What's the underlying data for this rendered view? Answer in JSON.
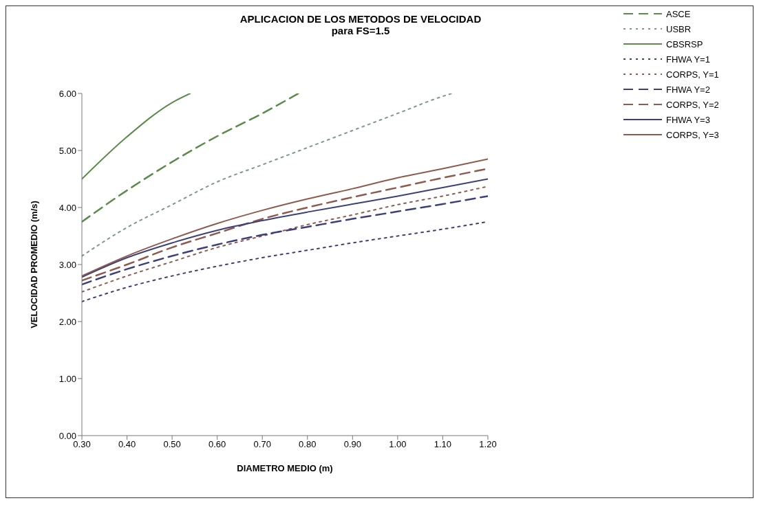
{
  "chart_data": {
    "type": "line",
    "title": "APLICACION DE LOS METODOS DE VELOCIDAD",
    "subtitle": "para FS=1.5",
    "xlabel": "DIAMETRO MEDIO (m)",
    "ylabel": "VELOCIDAD PROMEDIO (m/s)",
    "xlim": [
      0.3,
      1.2
    ],
    "xticks": [
      {
        "value": 0.3,
        "label": "0.30"
      },
      {
        "value": 0.4,
        "label": "0.40"
      },
      {
        "value": 0.5,
        "label": "0.50"
      },
      {
        "value": 0.6,
        "label": "0.60"
      },
      {
        "value": 0.7,
        "label": "0.70"
      },
      {
        "value": 0.8,
        "label": "0.80"
      },
      {
        "value": 0.9,
        "label": "0.90"
      },
      {
        "value": 1.0,
        "label": "1.00"
      },
      {
        "value": 1.1,
        "label": "1.10"
      },
      {
        "value": 1.2,
        "label": "1.20"
      }
    ],
    "ylim": [
      0,
      6
    ],
    "yticks": [
      {
        "value": 0,
        "label": "0.00"
      },
      {
        "value": 1,
        "label": "1.00"
      },
      {
        "value": 2,
        "label": "2.00"
      },
      {
        "value": 3,
        "label": "3.00"
      },
      {
        "value": 4,
        "label": "4.00"
      },
      {
        "value": 5,
        "label": "5.00"
      },
      {
        "value": 6,
        "label": "6.00"
      }
    ],
    "grid": false,
    "legend": "right",
    "marker": "none",
    "series": [
      {
        "name": "ASCE",
        "color": "#5b8a4a",
        "line_style": "dashed",
        "x": [
          0.3,
          0.4,
          0.5,
          0.6,
          0.7,
          0.78
        ],
        "values": [
          3.75,
          4.3,
          4.8,
          5.25,
          5.65,
          6.0
        ]
      },
      {
        "name": "USBR",
        "color": "#7a9a8a",
        "line_style": "dotted",
        "x": [
          0.3,
          0.4,
          0.5,
          0.6,
          0.7,
          0.8,
          0.9,
          1.0,
          1.1,
          1.12
        ],
        "values": [
          3.15,
          3.65,
          4.05,
          4.45,
          4.75,
          5.05,
          5.35,
          5.65,
          5.95,
          6.0
        ]
      },
      {
        "name": "CBSRSP",
        "color": "#5b8a4a",
        "line_style": "solid",
        "x": [
          0.3,
          0.4,
          0.5,
          0.54
        ],
        "values": [
          4.5,
          5.24,
          5.84,
          6.0
        ]
      },
      {
        "name": "FHWA Y=1",
        "color": "#3c3f7a",
        "line_style": "dotted",
        "x": [
          0.3,
          0.4,
          0.5,
          0.6,
          0.7,
          0.8,
          0.9,
          1.0,
          1.1,
          1.2
        ],
        "values": [
          2.35,
          2.6,
          2.8,
          2.97,
          3.12,
          3.25,
          3.38,
          3.5,
          3.62,
          3.75
        ]
      },
      {
        "name": "CORPS, Y=1",
        "color": "#8e5a4e",
        "line_style": "dotted",
        "x": [
          0.3,
          0.4,
          0.5,
          0.6,
          0.7,
          0.8,
          0.9,
          1.0,
          1.1,
          1.2
        ],
        "values": [
          2.52,
          2.8,
          3.05,
          3.3,
          3.5,
          3.7,
          3.87,
          4.05,
          4.2,
          4.37
        ]
      },
      {
        "name": "FHWA Y=2",
        "color": "#3c3f7a",
        "line_style": "dashed",
        "x": [
          0.3,
          0.4,
          0.5,
          0.6,
          0.7,
          0.8,
          0.9,
          1.0,
          1.1,
          1.2
        ],
        "values": [
          2.65,
          2.92,
          3.15,
          3.35,
          3.52,
          3.66,
          3.8,
          3.93,
          4.06,
          4.2
        ]
      },
      {
        "name": "CORPS, Y=2",
        "color": "#8e5a4e",
        "line_style": "dashed",
        "x": [
          0.3,
          0.4,
          0.5,
          0.6,
          0.7,
          0.8,
          0.9,
          1.0,
          1.1,
          1.2
        ],
        "values": [
          2.72,
          3.0,
          3.3,
          3.55,
          3.8,
          4.0,
          4.18,
          4.35,
          4.52,
          4.68
        ]
      },
      {
        "name": "FHWA Y=3",
        "color": "#3c3f7a",
        "line_style": "solid",
        "x": [
          0.3,
          0.4,
          0.5,
          0.6,
          0.7,
          0.8,
          0.9,
          1.0,
          1.1,
          1.2
        ],
        "values": [
          2.78,
          3.12,
          3.38,
          3.6,
          3.77,
          3.92,
          4.06,
          4.2,
          4.35,
          4.5
        ]
      },
      {
        "name": "CORPS, Y=3",
        "color": "#8e5a4e",
        "line_style": "solid",
        "x": [
          0.3,
          0.4,
          0.5,
          0.6,
          0.7,
          0.8,
          0.9,
          1.0,
          1.1,
          1.2
        ],
        "values": [
          2.8,
          3.15,
          3.45,
          3.72,
          3.95,
          4.15,
          4.33,
          4.52,
          4.68,
          4.85
        ]
      }
    ]
  }
}
